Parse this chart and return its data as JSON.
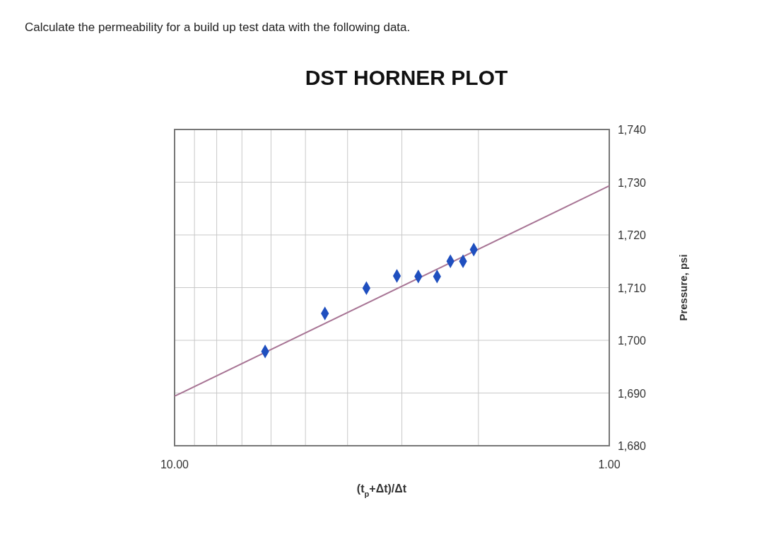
{
  "chart_data": {
    "type": "scatter",
    "title": "DST HORNER PLOT",
    "xlabel": "(t$_{p}$+Δt)/Δt",
    "ylabel": "Pressure, psi",
    "annotations": [
      "Calculate the permeability for a build up test data with the following data."
    ],
    "log": "x",
    "grid": true,
    "xlim": [
      10,
      1
    ],
    "xticks": [
      {
        "value": 10,
        "label": "10.00"
      },
      {
        "value": 9,
        "label": null
      },
      {
        "value": 8,
        "label": null
      },
      {
        "value": 7,
        "label": null
      },
      {
        "value": 6,
        "label": null
      },
      {
        "value": 5,
        "label": null
      },
      {
        "value": 4,
        "label": null
      },
      {
        "value": 3,
        "label": null
      },
      {
        "value": 2,
        "label": null
      },
      {
        "value": 1,
        "label": "1.00"
      }
    ],
    "ylim": [
      1680,
      1740
    ],
    "yticks": [
      {
        "value": 1680,
        "label": "1,680"
      },
      {
        "value": 1690,
        "label": "1,690"
      },
      {
        "value": 1700,
        "label": "1,700"
      },
      {
        "value": 1710,
        "label": "1,710"
      },
      {
        "value": 1720,
        "label": "1,720"
      },
      {
        "value": 1730,
        "label": "1,730"
      },
      {
        "value": 1740,
        "label": "1,740"
      }
    ],
    "series": [
      {
        "type": "scatter",
        "color": "#1f4fbf",
        "marker": "diamond",
        "x": [
          6.19,
          4.51,
          3.62,
          3.08,
          2.75,
          2.49,
          2.32,
          2.17,
          2.05
        ],
        "values": [
          1697.9,
          1705.1,
          1709.9,
          1712.2,
          1712.1,
          1712.1,
          1715.0,
          1715.0,
          1717.2
        ]
      },
      {
        "type": "line",
        "color": "#a87595",
        "marker": "none",
        "x": [
          10,
          1
        ],
        "values": [
          1689.4,
          1729.3
        ]
      }
    ]
  }
}
